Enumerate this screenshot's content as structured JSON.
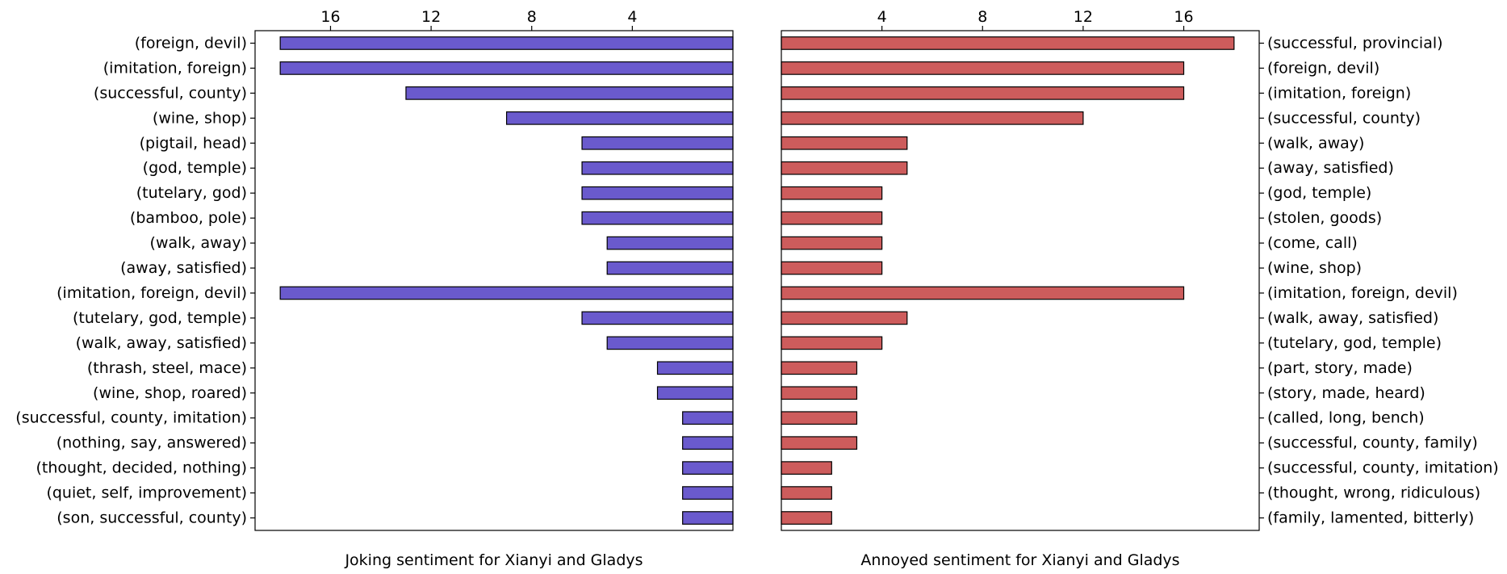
{
  "chart_data": [
    {
      "type": "bar",
      "orientation": "horizontal",
      "xlabel": "Joking sentiment for Xianyi and Gladys",
      "x_axis_position": "top",
      "x_inverted": true,
      "xlim": [
        0,
        19
      ],
      "xticks": [
        16,
        12,
        8,
        4
      ],
      "categories": [
        "(foreign, devil)",
        "(imitation, foreign)",
        "(successful, county)",
        "(wine, shop)",
        "(pigtail, head)",
        "(god, temple)",
        "(tutelary, god)",
        "(bamboo, pole)",
        "(walk, away)",
        "(away, satisfied)",
        "(imitation, foreign, devil)",
        "(tutelary, god, temple)",
        "(walk, away, satisfied)",
        "(thrash, steel, mace)",
        "(wine, shop, roared)",
        "(successful, county, imitation)",
        "(nothing, say, answered)",
        "(thought, decided, nothing)",
        "(quiet, self, improvement)",
        "(son, successful, county)"
      ],
      "values": [
        18,
        18,
        13,
        9,
        6,
        6,
        6,
        6,
        5,
        5,
        18,
        6,
        5,
        3,
        3,
        2,
        2,
        2,
        2,
        2
      ],
      "bar_color": "#6a5acd",
      "label_side": "left"
    },
    {
      "type": "bar",
      "orientation": "horizontal",
      "xlabel": "Annoyed sentiment for Xianyi and Gladys",
      "x_axis_position": "top",
      "x_inverted": false,
      "xlim": [
        0,
        19
      ],
      "xticks": [
        4,
        8,
        12,
        16
      ],
      "categories": [
        "(successful, provincial)",
        "(foreign, devil)",
        "(imitation, foreign)",
        "(successful, county)",
        "(walk, away)",
        "(away, satisfied)",
        "(god, temple)",
        "(stolen, goods)",
        "(come, call)",
        "(wine, shop)",
        "(imitation, foreign, devil)",
        "(walk, away, satisfied)",
        "(tutelary, god, temple)",
        "(part, story, made)",
        "(story, made, heard)",
        "(called, long, bench)",
        "(successful, county, family)",
        "(successful, county, imitation)",
        "(thought, wrong, ridiculous)",
        "(family, lamented, bitterly)"
      ],
      "values": [
        18,
        16,
        16,
        12,
        5,
        5,
        4,
        4,
        4,
        4,
        16,
        5,
        4,
        3,
        3,
        3,
        3,
        2,
        2,
        2
      ],
      "bar_color": "#cd5c5c",
      "label_side": "right"
    }
  ]
}
